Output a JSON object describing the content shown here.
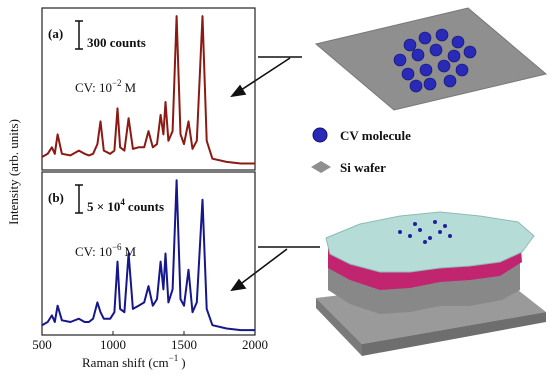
{
  "chart_data": [
    {
      "type": "line",
      "label": "(a)",
      "scale_bar": "300 counts",
      "annotation": {
        "text": "CV: 10",
        "sup": "−2",
        "unit": "M"
      },
      "y_label": "Intensity (arb. units)",
      "color": "#8b1a12",
      "xlim": [
        500,
        2000
      ],
      "ylim": [
        0,
        100
      ],
      "x": [
        500,
        540,
        570,
        590,
        610,
        640,
        700,
        760,
        800,
        830,
        860,
        890,
        912,
        935,
        980,
        1010,
        1032,
        1050,
        1080,
        1110,
        1140,
        1180,
        1220,
        1250,
        1280,
        1310,
        1335,
        1355,
        1370,
        1390,
        1420,
        1448,
        1475,
        1500,
        1532,
        1560,
        1590,
        1630,
        1660,
        1700,
        1800,
        1900,
        2000
      ],
      "values": [
        8,
        10,
        14,
        10,
        22,
        10,
        9,
        12,
        10,
        9,
        10,
        16,
        30,
        12,
        10,
        12,
        38,
        14,
        12,
        32,
        13,
        14,
        14,
        24,
        14,
        16,
        34,
        22,
        42,
        18,
        24,
        95,
        22,
        16,
        30,
        13,
        18,
        95,
        18,
        7,
        5,
        4,
        4
      ]
    },
    {
      "type": "line",
      "label": "(b)",
      "scale_bar": {
        "text": "5 × 10",
        "sup": "4",
        "unit": "counts"
      },
      "annotation": {
        "text": "CV: 10",
        "sup": "−6",
        "unit": "M"
      },
      "x_label": {
        "text": "Raman shift (cm",
        "sup": "−1",
        "unit": ")"
      },
      "color": "#15178a",
      "xlim": [
        500,
        2000
      ],
      "ylim": [
        0,
        100
      ],
      "xticks": [
        500,
        1000,
        1500,
        2000
      ],
      "x": [
        500,
        540,
        570,
        590,
        610,
        640,
        700,
        760,
        800,
        830,
        860,
        890,
        912,
        935,
        980,
        1010,
        1032,
        1050,
        1080,
        1110,
        1140,
        1180,
        1220,
        1250,
        1280,
        1310,
        1335,
        1355,
        1370,
        1390,
        1420,
        1448,
        1475,
        1500,
        1532,
        1560,
        1590,
        1630,
        1660,
        1700,
        1800,
        1900,
        2000
      ],
      "values": [
        6,
        8,
        12,
        8,
        18,
        9,
        8,
        10,
        8,
        8,
        10,
        20,
        14,
        10,
        10,
        14,
        45,
        16,
        14,
        50,
        16,
        18,
        20,
        30,
        18,
        22,
        45,
        28,
        50,
        20,
        28,
        95,
        22,
        18,
        40,
        14,
        20,
        83,
        16,
        6,
        4,
        3,
        3
      ]
    }
  ],
  "legend": {
    "molecule": "CV molecule",
    "wafer": "Si wafer"
  }
}
